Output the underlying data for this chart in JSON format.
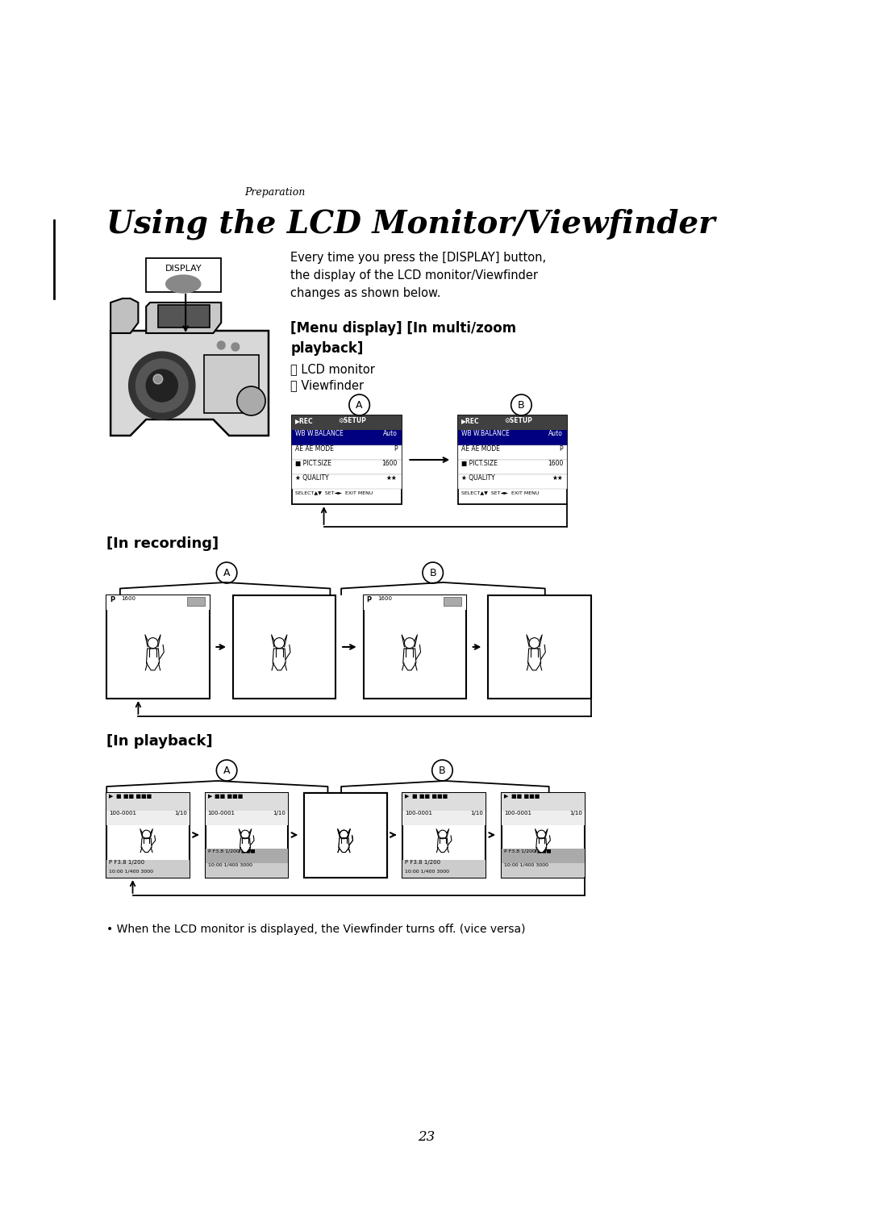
{
  "bg_color": "#ffffff",
  "page_width": 10.8,
  "page_height": 15.26,
  "preparation_text": "Preparation",
  "title": "Using the LCD Monitor/Viewfinder",
  "intro_text": "Every time you press the [DISPLAY] button,\nthe display of the LCD monitor/Viewfinder\nchanges as shown below.",
  "display_label": "DISPLAY",
  "menu_section_title": "[Menu display] [In multi/zoom\nplayback]",
  "menu_A_label": "Ⓐ LCD monitor",
  "menu_B_label": "Ⓑ Viewfinder",
  "recording_title": "[In recording]",
  "playback_title": "[In playback]",
  "note_text": "• When the LCD monitor is displayed, the Viewfinder turns off. (vice versa)",
  "page_number": "23"
}
